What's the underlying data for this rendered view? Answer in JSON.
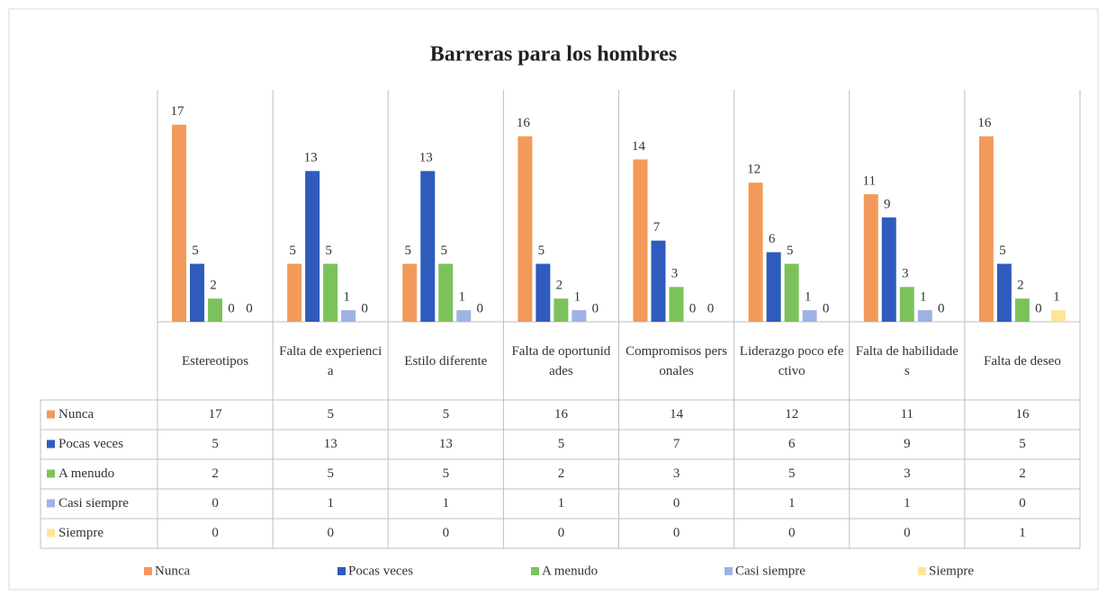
{
  "chart_data": {
    "type": "bar",
    "title": "Barreras para los hombres",
    "categories": [
      "Estereotipos",
      "Falta de experiencia",
      "Estilo diferente",
      "Falta de oportunidades",
      "Compromisos personales",
      "Liderazgo poco efectivo",
      "Falta de habilidades",
      "Falta de deseo"
    ],
    "series": [
      {
        "name": "Nunca",
        "color": "#f39a5a",
        "values": [
          17,
          5,
          5,
          16,
          14,
          12,
          11,
          16
        ]
      },
      {
        "name": "Pocas veces",
        "color": "#2f5bbd",
        "values": [
          5,
          13,
          13,
          5,
          7,
          6,
          9,
          5
        ]
      },
      {
        "name": "A menudo",
        "color": "#7cc25a",
        "values": [
          2,
          5,
          5,
          2,
          3,
          5,
          3,
          2
        ]
      },
      {
        "name": "Casi siempre",
        "color": "#9fb2e4",
        "values": [
          0,
          1,
          1,
          1,
          0,
          1,
          1,
          0
        ]
      },
      {
        "name": "Siempre",
        "color": "#ffe597",
        "values": [
          0,
          0,
          0,
          0,
          0,
          0,
          0,
          1
        ]
      }
    ],
    "ylim": [
      0,
      20
    ],
    "data_table": true,
    "legend": "bottom"
  }
}
